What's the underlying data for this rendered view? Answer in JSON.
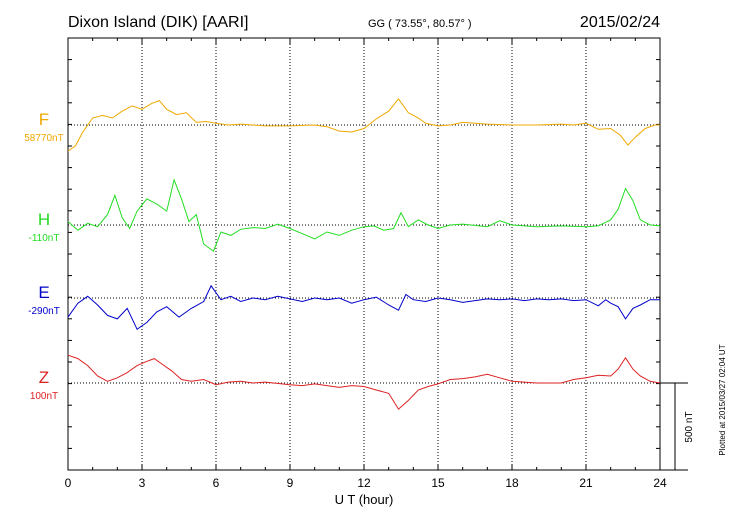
{
  "header": {
    "station": "Dixon Island (DIK)  [AARI]",
    "coords": "GG ( 73.55°,  80.57° )",
    "date": "2015/02/24"
  },
  "side_note": "Plotted at 2015/03/27 02:04 UT",
  "scale_label": "500 nT",
  "chart_data": {
    "type": "line",
    "xlabel": "U T (hour)",
    "xlim": [
      0,
      24
    ],
    "x_ticks": [
      "0",
      "3",
      "6",
      "9",
      "12",
      "15",
      "18",
      "21",
      "24"
    ],
    "scale_bar_nT": 500,
    "grid": true,
    "series": [
      {
        "name": "F",
        "baseline": "58770nT",
        "color": "#f0a800",
        "points": [
          [
            0,
            -150
          ],
          [
            0.3,
            -120
          ],
          [
            0.6,
            -40
          ],
          [
            1.0,
            40
          ],
          [
            1.4,
            55
          ],
          [
            1.8,
            40
          ],
          [
            2.2,
            80
          ],
          [
            2.6,
            110
          ],
          [
            3.0,
            90
          ],
          [
            3.4,
            125
          ],
          [
            3.7,
            140
          ],
          [
            4.0,
            90
          ],
          [
            4.4,
            60
          ],
          [
            4.8,
            70
          ],
          [
            5.2,
            15
          ],
          [
            5.6,
            20
          ],
          [
            6.0,
            10
          ],
          [
            6.5,
            0
          ],
          [
            7.0,
            5
          ],
          [
            7.5,
            0
          ],
          [
            8.0,
            -5
          ],
          [
            9.0,
            -5
          ],
          [
            10.0,
            0
          ],
          [
            10.5,
            -10
          ],
          [
            11.0,
            -35
          ],
          [
            11.5,
            -40
          ],
          [
            12.0,
            -20
          ],
          [
            12.5,
            35
          ],
          [
            13.0,
            80
          ],
          [
            13.4,
            150
          ],
          [
            13.8,
            70
          ],
          [
            14.2,
            40
          ],
          [
            14.5,
            10
          ],
          [
            15.0,
            -5
          ],
          [
            15.5,
            0
          ],
          [
            16.0,
            15
          ],
          [
            17.0,
            5
          ],
          [
            18.0,
            0
          ],
          [
            19.0,
            0
          ],
          [
            20.0,
            5
          ],
          [
            20.5,
            0
          ],
          [
            21.0,
            10
          ],
          [
            21.5,
            -25
          ],
          [
            22.0,
            -20
          ],
          [
            22.4,
            -60
          ],
          [
            22.7,
            -115
          ],
          [
            23.0,
            -70
          ],
          [
            23.4,
            -20
          ],
          [
            23.8,
            0
          ],
          [
            24.0,
            0
          ]
        ]
      },
      {
        "name": "H",
        "baseline": "-110nT",
        "color": "#22dd22",
        "points": [
          [
            0,
            20
          ],
          [
            0.4,
            -30
          ],
          [
            0.8,
            10
          ],
          [
            1.2,
            -10
          ],
          [
            1.6,
            60
          ],
          [
            1.9,
            170
          ],
          [
            2.2,
            40
          ],
          [
            2.5,
            -20
          ],
          [
            2.8,
            80
          ],
          [
            3.2,
            150
          ],
          [
            3.6,
            120
          ],
          [
            4.0,
            80
          ],
          [
            4.3,
            260
          ],
          [
            4.6,
            150
          ],
          [
            4.9,
            20
          ],
          [
            5.2,
            60
          ],
          [
            5.5,
            -110
          ],
          [
            5.9,
            -150
          ],
          [
            6.2,
            -40
          ],
          [
            6.6,
            -60
          ],
          [
            7.0,
            -25
          ],
          [
            7.5,
            -15
          ],
          [
            8.0,
            -20
          ],
          [
            8.5,
            5
          ],
          [
            9.0,
            -20
          ],
          [
            9.5,
            -50
          ],
          [
            10.0,
            -80
          ],
          [
            10.5,
            -40
          ],
          [
            11.0,
            -60
          ],
          [
            11.5,
            -30
          ],
          [
            12.0,
            -10
          ],
          [
            12.4,
            -5
          ],
          [
            12.8,
            -30
          ],
          [
            13.2,
            -20
          ],
          [
            13.5,
            70
          ],
          [
            13.8,
            -10
          ],
          [
            14.2,
            30
          ],
          [
            14.6,
            0
          ],
          [
            15.0,
            -20
          ],
          [
            15.5,
            0
          ],
          [
            16.0,
            5
          ],
          [
            17.0,
            -10
          ],
          [
            17.5,
            25
          ],
          [
            18.0,
            0
          ],
          [
            19.0,
            -10
          ],
          [
            20.0,
            -5
          ],
          [
            21.0,
            -10
          ],
          [
            21.5,
            -5
          ],
          [
            22.0,
            30
          ],
          [
            22.3,
            90
          ],
          [
            22.6,
            210
          ],
          [
            22.9,
            140
          ],
          [
            23.2,
            30
          ],
          [
            23.6,
            0
          ],
          [
            24.0,
            -5
          ]
        ]
      },
      {
        "name": "E",
        "baseline": "-290nT",
        "color": "#0000cc",
        "points": [
          [
            0,
            -110
          ],
          [
            0.4,
            -30
          ],
          [
            0.8,
            10
          ],
          [
            1.2,
            -40
          ],
          [
            1.6,
            -100
          ],
          [
            2.0,
            -120
          ],
          [
            2.4,
            -60
          ],
          [
            2.8,
            -180
          ],
          [
            3.2,
            -140
          ],
          [
            3.6,
            -80
          ],
          [
            4.0,
            -50
          ],
          [
            4.5,
            -110
          ],
          [
            5.0,
            -60
          ],
          [
            5.5,
            -20
          ],
          [
            5.8,
            70
          ],
          [
            6.2,
            -10
          ],
          [
            6.6,
            10
          ],
          [
            7.0,
            -20
          ],
          [
            7.5,
            0
          ],
          [
            8.0,
            -10
          ],
          [
            8.5,
            10
          ],
          [
            9.0,
            -5
          ],
          [
            9.5,
            -20
          ],
          [
            10.0,
            0
          ],
          [
            10.5,
            -10
          ],
          [
            11.0,
            0
          ],
          [
            11.5,
            -30
          ],
          [
            12.0,
            -10
          ],
          [
            12.5,
            5
          ],
          [
            13.0,
            -40
          ],
          [
            13.4,
            -70
          ],
          [
            13.7,
            20
          ],
          [
            14.0,
            -10
          ],
          [
            14.5,
            -20
          ],
          [
            15.0,
            0
          ],
          [
            15.5,
            -10
          ],
          [
            16.0,
            -25
          ],
          [
            16.5,
            -15
          ],
          [
            17.0,
            -5
          ],
          [
            17.5,
            -10
          ],
          [
            18.0,
            -5
          ],
          [
            18.5,
            -15
          ],
          [
            19.0,
            -5
          ],
          [
            19.5,
            -10
          ],
          [
            20.0,
            -5
          ],
          [
            20.5,
            -15
          ],
          [
            21.0,
            -10
          ],
          [
            21.5,
            -45
          ],
          [
            21.8,
            -10
          ],
          [
            22.0,
            -30
          ],
          [
            22.3,
            -50
          ],
          [
            22.6,
            -120
          ],
          [
            22.9,
            -60
          ],
          [
            23.2,
            -40
          ],
          [
            23.6,
            -10
          ],
          [
            24.0,
            -10
          ]
        ]
      },
      {
        "name": "Z",
        "baseline": "100nT",
        "color": "#dd2222",
        "points": [
          [
            0,
            160
          ],
          [
            0.4,
            140
          ],
          [
            0.8,
            100
          ],
          [
            1.2,
            40
          ],
          [
            1.6,
            10
          ],
          [
            2.0,
            30
          ],
          [
            2.4,
            60
          ],
          [
            2.8,
            100
          ],
          [
            3.2,
            125
          ],
          [
            3.5,
            140
          ],
          [
            3.8,
            110
          ],
          [
            4.2,
            70
          ],
          [
            4.6,
            20
          ],
          [
            5.0,
            10
          ],
          [
            5.5,
            20
          ],
          [
            6.0,
            -10
          ],
          [
            6.5,
            5
          ],
          [
            7.0,
            10
          ],
          [
            7.5,
            0
          ],
          [
            8.0,
            5
          ],
          [
            9.0,
            -10
          ],
          [
            9.5,
            -15
          ],
          [
            10.0,
            -5
          ],
          [
            10.5,
            -15
          ],
          [
            11.0,
            -25
          ],
          [
            11.5,
            -15
          ],
          [
            12.0,
            -20
          ],
          [
            12.5,
            -40
          ],
          [
            13.0,
            -60
          ],
          [
            13.4,
            -150
          ],
          [
            13.8,
            -100
          ],
          [
            14.2,
            -40
          ],
          [
            14.6,
            -20
          ],
          [
            15.0,
            -5
          ],
          [
            15.5,
            20
          ],
          [
            16.0,
            25
          ],
          [
            16.5,
            35
          ],
          [
            17.0,
            50
          ],
          [
            17.5,
            30
          ],
          [
            18.0,
            10
          ],
          [
            18.5,
            5
          ],
          [
            19.0,
            0
          ],
          [
            20.0,
            0
          ],
          [
            20.5,
            20
          ],
          [
            21.0,
            30
          ],
          [
            21.5,
            45
          ],
          [
            22.0,
            40
          ],
          [
            22.3,
            80
          ],
          [
            22.6,
            145
          ],
          [
            22.9,
            80
          ],
          [
            23.2,
            40
          ],
          [
            23.6,
            10
          ],
          [
            24.0,
            0
          ]
        ]
      }
    ]
  }
}
